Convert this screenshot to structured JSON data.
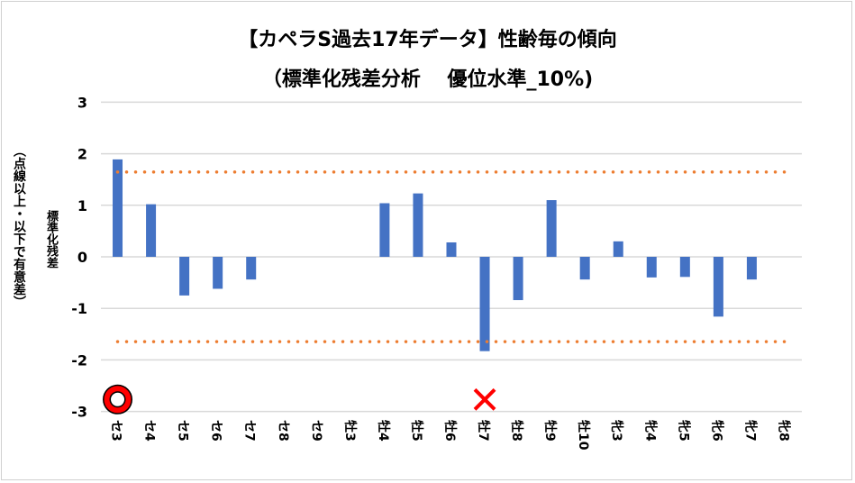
{
  "chart_data": {
    "type": "bar",
    "title": "【カペラS過去17年データ】性齢毎の傾向",
    "subtitle": "（標準化残差分析　 優位水準_10%)",
    "ylabel": "標準化残差",
    "ylabel2": "（点線以上・以下で有意差）",
    "categories": [
      "セ3",
      "セ4",
      "セ5",
      "セ6",
      "セ7",
      "セ8",
      "セ9",
      "牡3",
      "牡4",
      "牡5",
      "牡6",
      "牡7",
      "牡8",
      "牡9",
      "牡10",
      "牝3",
      "牝4",
      "牝5",
      "牝6",
      "牝7",
      "牝8"
    ],
    "values": [
      1.89,
      1.02,
      -0.75,
      -0.62,
      -0.44,
      0,
      0,
      0,
      1.04,
      1.23,
      0.28,
      -1.83,
      -0.84,
      1.1,
      -0.44,
      0.3,
      -0.4,
      -0.39,
      -1.16,
      -0.44,
      0
    ],
    "ylim": [
      -3,
      3
    ],
    "yticks": [
      "3",
      "2",
      "1",
      "0",
      "-1",
      "-2",
      "-3"
    ],
    "threshold_lines": [
      1.645,
      -1.645
    ],
    "grid": true,
    "bar_color": "#4472C4",
    "threshold_color": "#ED7D31",
    "markers": [
      {
        "category": "セ3",
        "symbol": "circle",
        "color": "#FF0000",
        "y": -2.75
      },
      {
        "category": "牡7",
        "symbol": "cross",
        "color": "#FF0000",
        "y": -2.75
      }
    ]
  }
}
